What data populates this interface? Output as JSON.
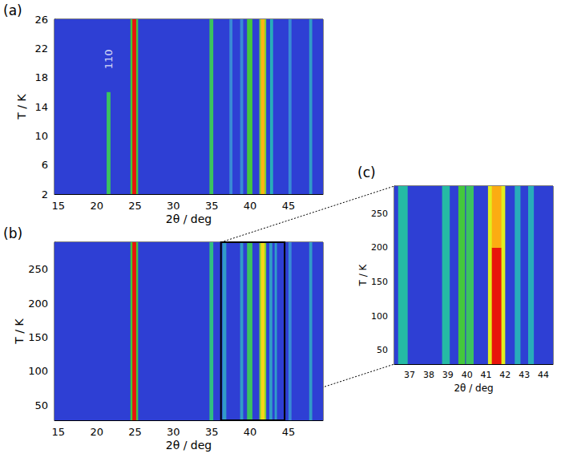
{
  "chart_data": [
    {
      "type": "heatmap",
      "label": "(a)",
      "x_label": "2θ / deg",
      "y_label": "T / K",
      "xlim": [
        14.5,
        49.5
      ],
      "xticks": [
        15,
        20,
        25,
        30,
        35,
        40,
        45
      ],
      "ylim": [
        2,
        26
      ],
      "yticks": [
        2,
        6,
        10,
        14,
        18,
        22,
        26
      ],
      "annotations": [
        {
          "text": "110",
          "x": 21.5,
          "y": 20.5
        }
      ],
      "cells": [
        [
          14.5,
          49.5,
          2,
          26,
          0
        ],
        [
          21.3,
          21.8,
          2,
          16,
          0.45
        ],
        [
          24.4,
          25.4,
          2,
          26,
          0.5
        ],
        [
          24.65,
          25.15,
          2,
          26,
          1.0
        ],
        [
          34.7,
          35.2,
          2,
          26,
          0.45
        ],
        [
          37.3,
          37.7,
          2,
          26,
          0.2
        ],
        [
          38.7,
          39.1,
          2,
          26,
          0.2
        ],
        [
          39.6,
          40.3,
          2,
          26,
          0.5
        ],
        [
          41.2,
          42.1,
          2,
          26,
          0.55
        ],
        [
          41.4,
          41.9,
          2,
          26,
          0.78
        ],
        [
          42.6,
          43.0,
          2,
          26,
          0.3
        ],
        [
          45.0,
          45.4,
          2,
          26,
          0.2
        ],
        [
          47.7,
          48.1,
          2,
          26,
          0.25
        ]
      ]
    },
    {
      "type": "heatmap",
      "label": "(b)",
      "x_label": "2θ / deg",
      "y_label": "T / K",
      "xlim": [
        14.5,
        49.5
      ],
      "xticks": [
        15,
        20,
        25,
        30,
        35,
        40,
        45
      ],
      "ylim": [
        28,
        290
      ],
      "yticks": [
        50,
        100,
        150,
        200,
        250
      ],
      "cells": [
        [
          14.5,
          49.5,
          28,
          290,
          0
        ],
        [
          24.4,
          25.4,
          28,
          290,
          0.5
        ],
        [
          24.65,
          25.15,
          28,
          290,
          1.0
        ],
        [
          34.7,
          35.2,
          28,
          290,
          0.4
        ],
        [
          36.4,
          36.9,
          28,
          290,
          0.25
        ],
        [
          38.7,
          39.1,
          28,
          290,
          0.25
        ],
        [
          39.6,
          40.3,
          28,
          290,
          0.45
        ],
        [
          41.2,
          42.1,
          28,
          290,
          0.55
        ],
        [
          41.4,
          41.9,
          28,
          290,
          0.72
        ],
        [
          42.5,
          42.9,
          28,
          290,
          0.25
        ],
        [
          43.2,
          43.5,
          28,
          290,
          0.25
        ],
        [
          45.0,
          45.4,
          28,
          290,
          0.2
        ],
        [
          47.7,
          48.1,
          28,
          290,
          0.25
        ]
      ]
    },
    {
      "type": "heatmap",
      "label": "(c)",
      "x_label": "2θ / deg",
      "y_label": "T / K",
      "xlim": [
        36.2,
        44.5
      ],
      "xticks": [
        37,
        38,
        39,
        40,
        41,
        42,
        43,
        44
      ],
      "ylim": [
        30,
        290
      ],
      "yticks": [
        50,
        100,
        150,
        200,
        250
      ],
      "cells": [
        [
          36.2,
          44.5,
          30,
          290,
          0
        ],
        [
          36.4,
          36.9,
          30,
          290,
          0.35
        ],
        [
          38.7,
          39.1,
          30,
          290,
          0.35
        ],
        [
          39.55,
          39.9,
          30,
          290,
          0.5
        ],
        [
          39.95,
          40.35,
          30,
          290,
          0.45
        ],
        [
          41.1,
          42.0,
          30,
          290,
          0.65
        ],
        [
          41.3,
          41.8,
          30,
          200,
          1.0
        ],
        [
          41.3,
          41.8,
          200,
          290,
          0.8
        ],
        [
          42.5,
          42.8,
          30,
          290,
          0.3
        ],
        [
          43.2,
          43.5,
          30,
          290,
          0.3
        ]
      ]
    }
  ]
}
